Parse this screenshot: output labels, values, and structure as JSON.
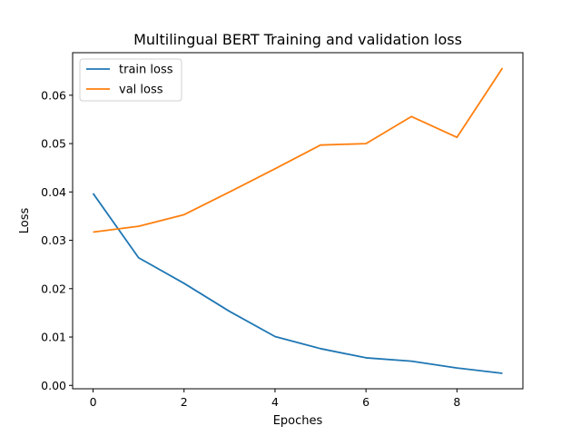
{
  "chart_data": {
    "type": "line",
    "title": "Multilingual BERT Training and validation loss",
    "xlabel": "Epoches",
    "ylabel": "Loss",
    "x": [
      0,
      1,
      2,
      3,
      4,
      5,
      6,
      7,
      8,
      9
    ],
    "series": [
      {
        "name": "train loss",
        "color": "#1f77b4",
        "values": [
          0.0397,
          0.0264,
          0.0211,
          0.0153,
          0.0101,
          0.0076,
          0.0057,
          0.005,
          0.0036,
          0.0025
        ]
      },
      {
        "name": "val loss",
        "color": "#ff7f0e",
        "values": [
          0.0317,
          0.0329,
          0.0353,
          0.04,
          0.0448,
          0.0497,
          0.05,
          0.0556,
          0.0513,
          0.0656
        ]
      }
    ],
    "xlim": [
      -0.45,
      9.45
    ],
    "ylim": [
      -0.0007,
      0.0688
    ],
    "xticks": [
      0,
      2,
      4,
      6,
      8
    ],
    "xtick_labels": [
      "0",
      "2",
      "4",
      "6",
      "8"
    ],
    "yticks": [
      0.0,
      0.01,
      0.02,
      0.03,
      0.04,
      0.05,
      0.06
    ],
    "ytick_labels": [
      "0.00",
      "0.01",
      "0.02",
      "0.03",
      "0.04",
      "0.05",
      "0.06"
    ],
    "legend_position": "upper-left",
    "grid": false
  }
}
